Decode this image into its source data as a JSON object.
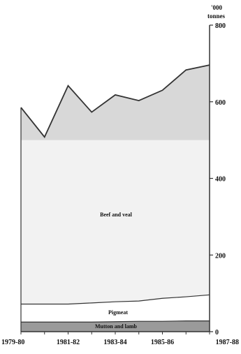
{
  "chart_data": {
    "type": "area",
    "stacked": true,
    "title": "",
    "xlabel": "",
    "ylabel": "'000 tonnes",
    "ylabel_lines": [
      "'000",
      "tonnes"
    ],
    "ylim": [
      0,
      800
    ],
    "yticks": [
      0,
      200,
      400,
      600,
      800
    ],
    "y_axis_side": "right",
    "x": [
      "1979-80",
      "1980-81",
      "1981-82",
      "1982-83",
      "1983-84",
      "1984-85",
      "1985-86",
      "1986-87",
      "1987-88"
    ],
    "xtick_labels": [
      "1979-80",
      "1981-82",
      "1983-84",
      "1985-86",
      "1987-88"
    ],
    "grid": false,
    "series": [
      {
        "name": "Mutton and lamb",
        "values": [
          25,
          25,
          25,
          25,
          26,
          27,
          27,
          28,
          28
        ]
      },
      {
        "name": "Pigmeat",
        "values": [
          47,
          47,
          47,
          50,
          52,
          53,
          60,
          63,
          68
        ]
      },
      {
        "name": "Beef and veal",
        "values": [
          513,
          436,
          570,
          498,
          540,
          523,
          543,
          592,
          600
        ]
      }
    ],
    "totals": [
      585,
      508,
      642,
      573,
      618,
      603,
      630,
      683,
      696
    ],
    "colors": {
      "top_band_fill": "#d8d8d8",
      "middle_band_fill": "#f2f2f2",
      "pig_band_fill": "#ffffff",
      "bottom_band_fill": "#9a9a9a",
      "line": "#333333"
    }
  }
}
